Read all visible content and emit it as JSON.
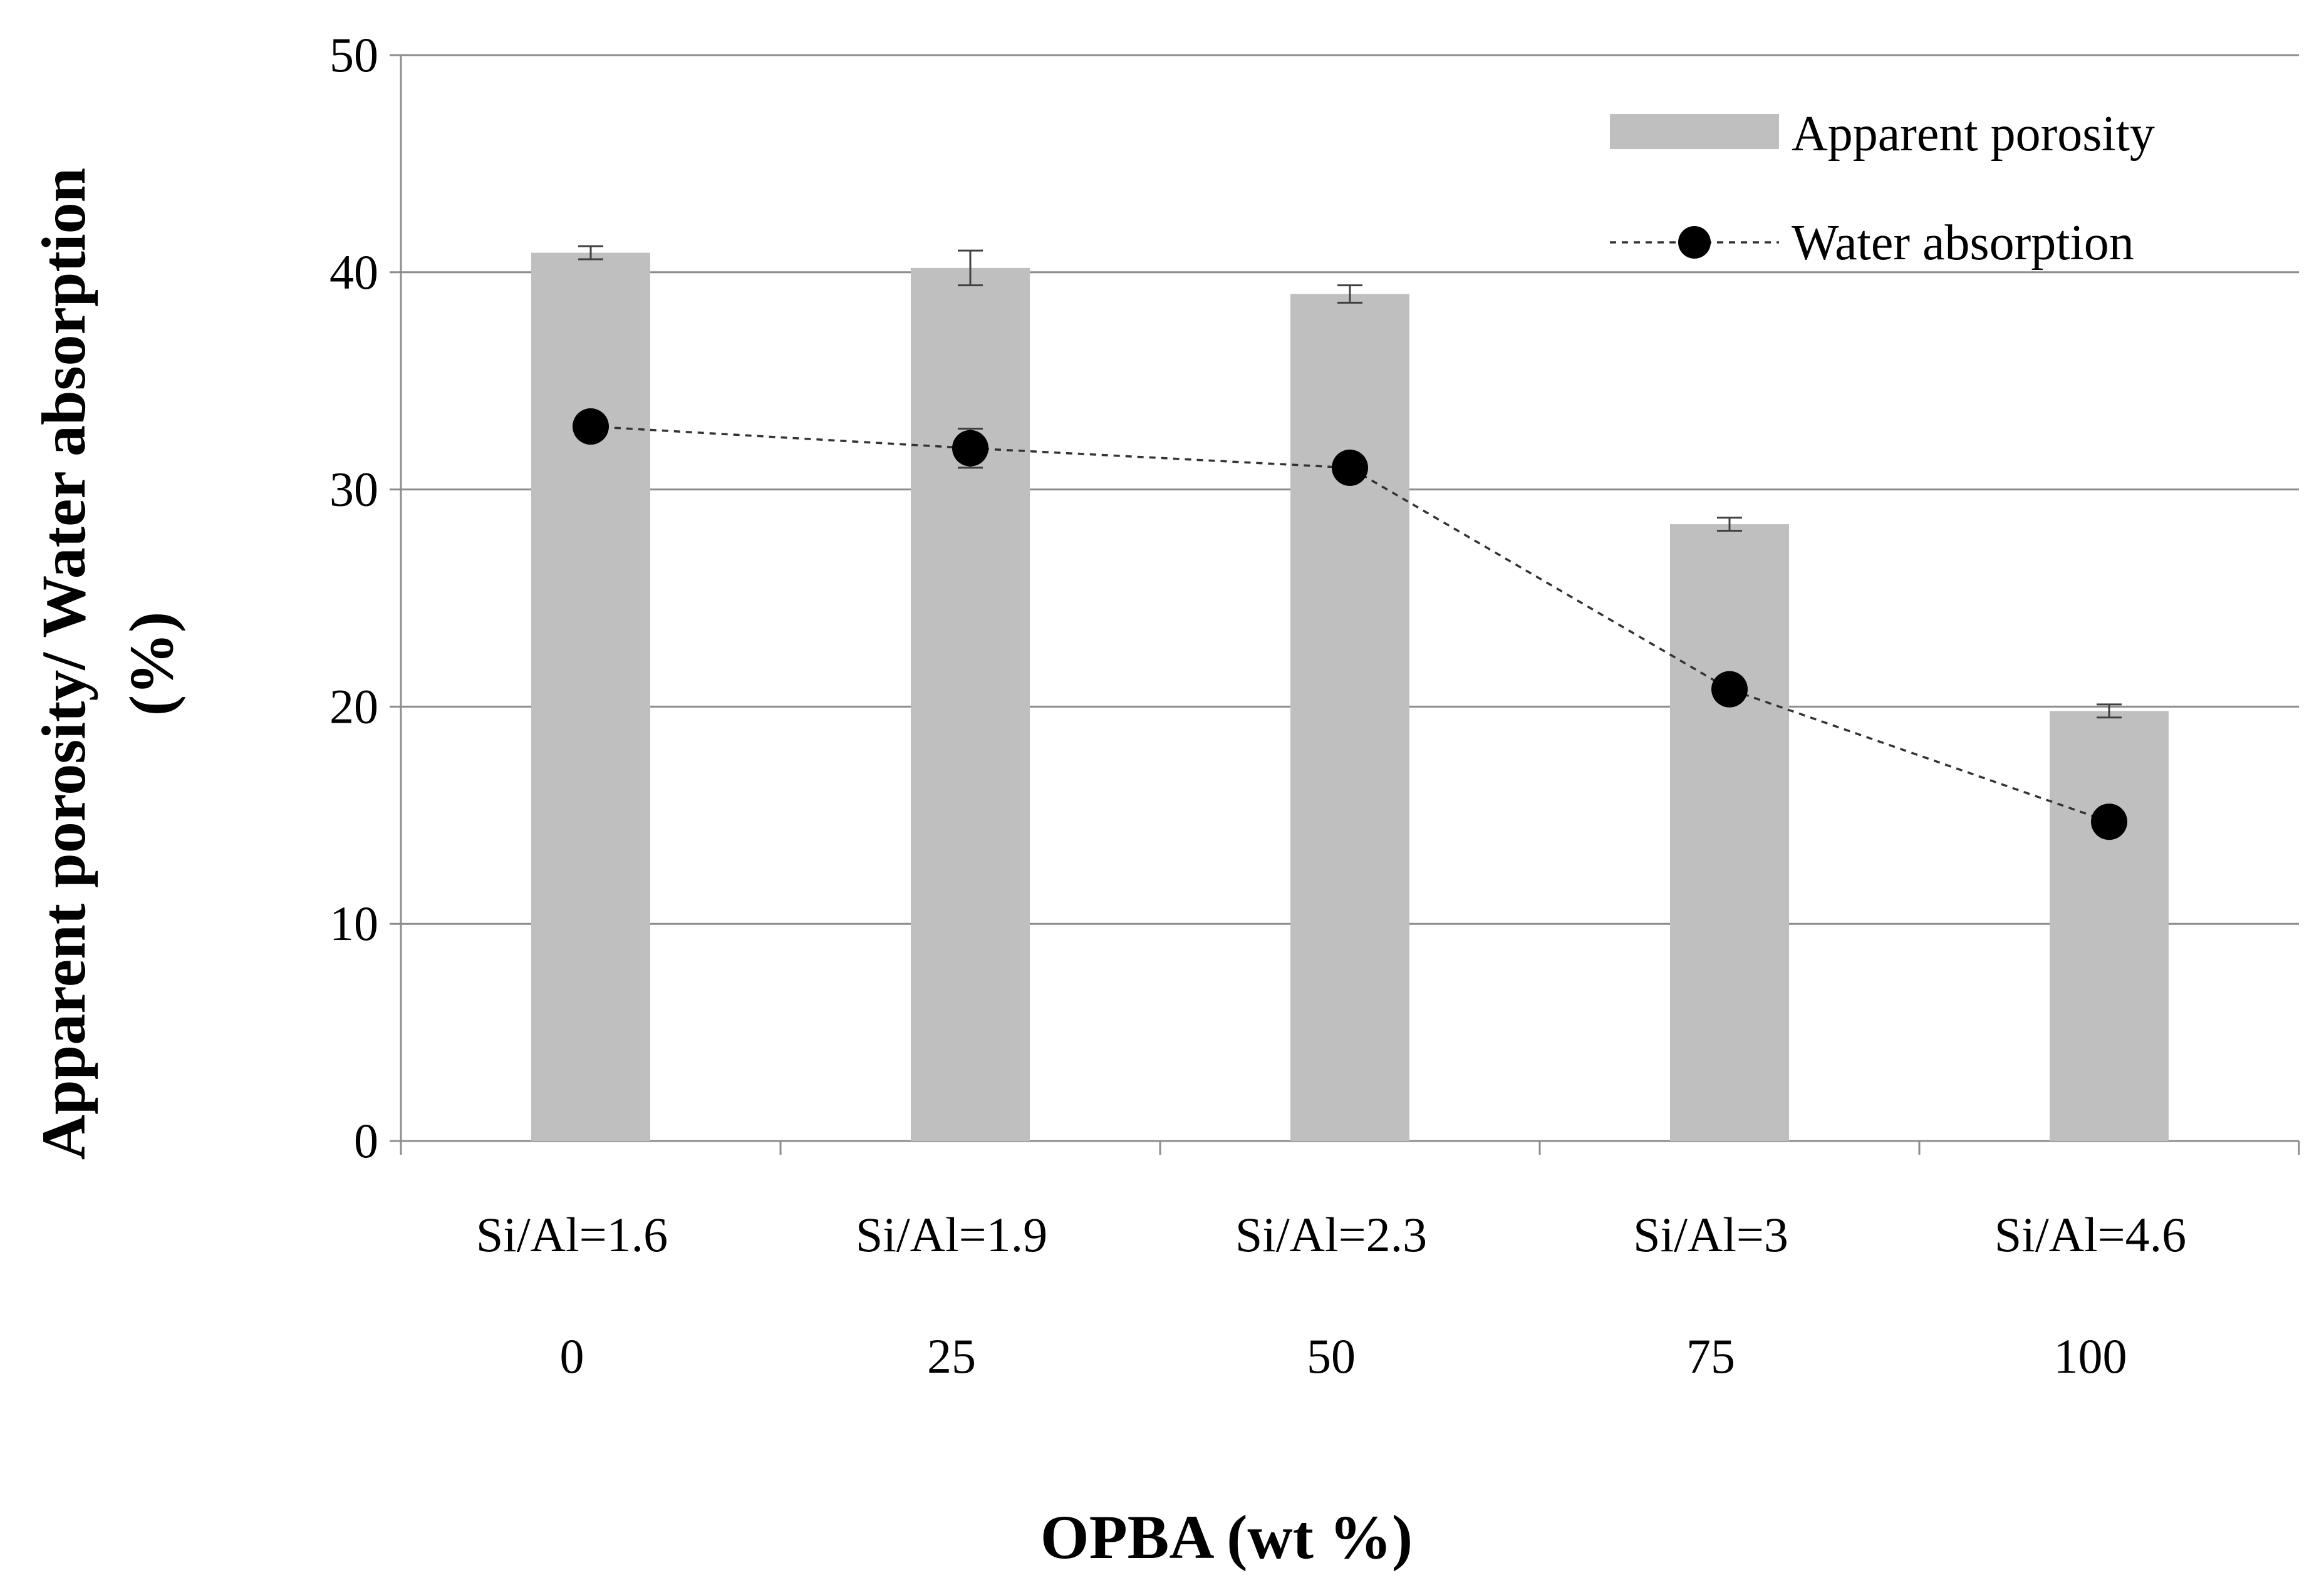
{
  "chart_data": {
    "type": "bar",
    "title": "",
    "xlabel": "OPBA (wt %)",
    "ylabel_line1": "Apparent porosity/ Water absorption",
    "ylabel_line2": "(%)",
    "ylim": [
      0,
      50
    ],
    "yticks": [
      0,
      10,
      20,
      30,
      40,
      50
    ],
    "grid": "horizontal",
    "legend_position": "top-right",
    "categories": [
      "Si/Al=1.6",
      "Si/Al=1.9",
      "Si/Al=2.3",
      "Si/Al=3",
      "Si/Al=4.6"
    ],
    "secondary_categories": [
      "0",
      "25",
      "50",
      "75",
      "100"
    ],
    "series": [
      {
        "name": "Apparent porosity",
        "kind": "bar",
        "color": "#bfbfbf",
        "values": [
          40.9,
          40.2,
          39.0,
          28.4,
          19.8
        ],
        "errors": [
          0.3,
          0.8,
          0.4,
          0.3,
          0.3
        ]
      },
      {
        "name": "Water absorption",
        "kind": "line",
        "style": "dashed",
        "marker": "circle",
        "color": "#000000",
        "values": [
          32.9,
          31.9,
          31.0,
          20.8,
          14.7
        ],
        "errors": [
          0.3,
          0.9,
          0.2,
          0.2,
          0.2
        ]
      }
    ]
  }
}
